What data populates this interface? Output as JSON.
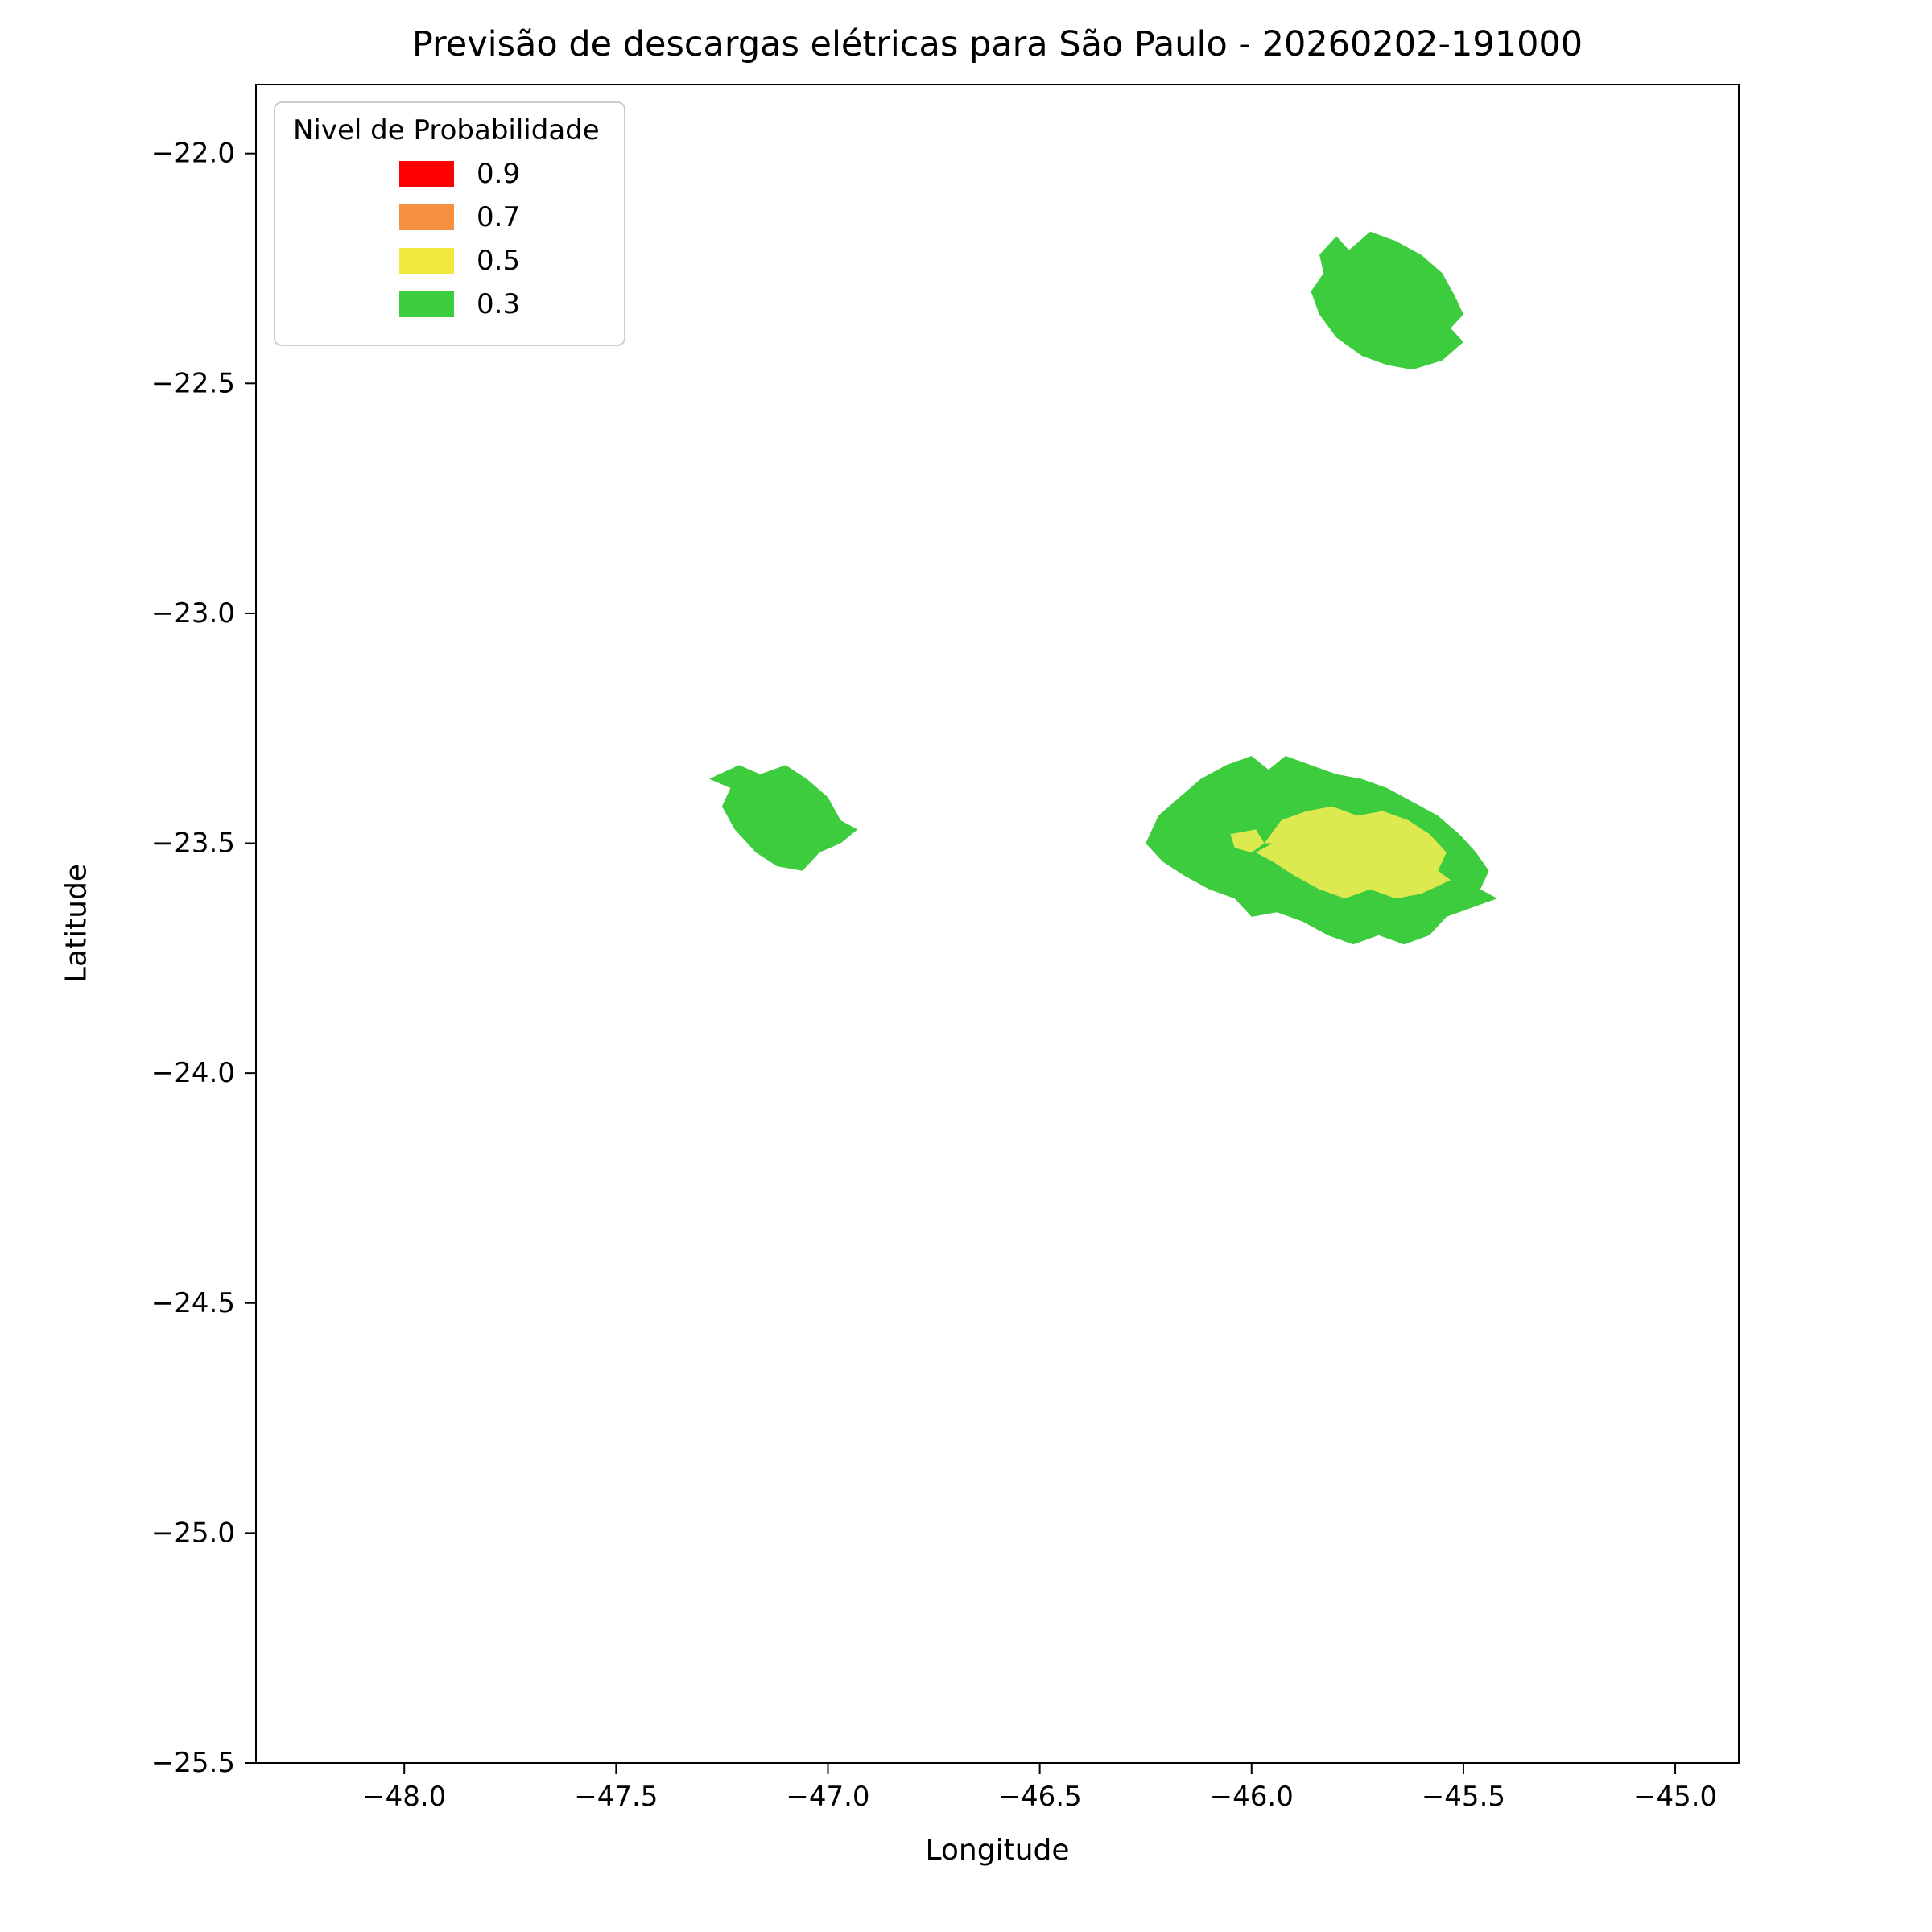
{
  "chart_data": {
    "type": "area",
    "title": "Previsão de descargas elétricas para São Paulo - 20260202-191000",
    "xlabel": "Longitude",
    "ylabel": "Latitude",
    "xlim": [
      -48.35,
      -44.85
    ],
    "ylim": [
      -25.5,
      -21.85
    ],
    "grid": false,
    "xticks": [
      -48.0,
      -47.5,
      -47.0,
      -46.5,
      -46.0,
      -45.5,
      -45.0
    ],
    "xtick_labels": [
      "−48.0",
      "−47.5",
      "−47.0",
      "−46.5",
      "−46.0",
      "−45.5",
      "−45.0"
    ],
    "yticks": [
      -22.0,
      -22.5,
      -23.0,
      -23.5,
      -24.0,
      -24.5,
      -25.0,
      -25.5
    ],
    "ytick_labels": [
      "−22.0",
      "−22.5",
      "−23.0",
      "−23.5",
      "−24.0",
      "−24.5",
      "−25.0",
      "−25.5"
    ],
    "legend": {
      "title": "Nivel de Probabilidade",
      "position": "upper left",
      "items": [
        {
          "label": "0.9",
          "level": 0.9,
          "color": "#ff0000"
        },
        {
          "label": "0.7",
          "level": 0.7,
          "color": "#f59140"
        },
        {
          "label": "0.5",
          "level": 0.5,
          "color": "#f0e93d"
        },
        {
          "label": "0.3",
          "level": 0.3,
          "color": "#3dcc3d"
        }
      ]
    },
    "regions": [
      {
        "name": "north-cell",
        "level": 0.3,
        "color": "#3dcc3d",
        "polygon": [
          [
            -45.84,
            -22.22
          ],
          [
            -45.8,
            -22.18
          ],
          [
            -45.77,
            -22.21
          ],
          [
            -45.72,
            -22.17
          ],
          [
            -45.66,
            -22.19
          ],
          [
            -45.6,
            -22.22
          ],
          [
            -45.55,
            -22.26
          ],
          [
            -45.52,
            -22.31
          ],
          [
            -45.5,
            -22.35
          ],
          [
            -45.53,
            -22.38
          ],
          [
            -45.5,
            -22.41
          ],
          [
            -45.55,
            -22.45
          ],
          [
            -45.62,
            -22.47
          ],
          [
            -45.68,
            -22.46
          ],
          [
            -45.74,
            -22.44
          ],
          [
            -45.8,
            -22.4
          ],
          [
            -45.84,
            -22.35
          ],
          [
            -45.86,
            -22.3
          ],
          [
            -45.83,
            -22.26
          ]
        ]
      },
      {
        "name": "west-cell",
        "level": 0.3,
        "color": "#3dcc3d",
        "polygon": [
          [
            -47.28,
            -23.36
          ],
          [
            -47.21,
            -23.33
          ],
          [
            -47.16,
            -23.35
          ],
          [
            -47.1,
            -23.33
          ],
          [
            -47.05,
            -23.36
          ],
          [
            -47.0,
            -23.4
          ],
          [
            -46.97,
            -23.45
          ],
          [
            -46.93,
            -23.47
          ],
          [
            -46.97,
            -23.5
          ],
          [
            -47.02,
            -23.52
          ],
          [
            -47.06,
            -23.56
          ],
          [
            -47.12,
            -23.55
          ],
          [
            -47.17,
            -23.52
          ],
          [
            -47.22,
            -23.47
          ],
          [
            -47.25,
            -23.42
          ],
          [
            -47.23,
            -23.38
          ]
        ]
      },
      {
        "name": "east-cell-outer",
        "level": 0.3,
        "color": "#3dcc3d",
        "polygon": [
          [
            -46.25,
            -23.5
          ],
          [
            -46.22,
            -23.44
          ],
          [
            -46.17,
            -23.4
          ],
          [
            -46.12,
            -23.36
          ],
          [
            -46.06,
            -23.33
          ],
          [
            -46.0,
            -23.31
          ],
          [
            -45.96,
            -23.34
          ],
          [
            -45.92,
            -23.31
          ],
          [
            -45.86,
            -23.33
          ],
          [
            -45.8,
            -23.35
          ],
          [
            -45.74,
            -23.36
          ],
          [
            -45.68,
            -23.38
          ],
          [
            -45.62,
            -23.41
          ],
          [
            -45.56,
            -23.44
          ],
          [
            -45.51,
            -23.48
          ],
          [
            -45.47,
            -23.52
          ],
          [
            -45.44,
            -23.56
          ],
          [
            -45.46,
            -23.6
          ],
          [
            -45.42,
            -23.62
          ],
          [
            -45.48,
            -23.64
          ],
          [
            -45.54,
            -23.66
          ],
          [
            -45.58,
            -23.7
          ],
          [
            -45.64,
            -23.72
          ],
          [
            -45.7,
            -23.7
          ],
          [
            -45.76,
            -23.72
          ],
          [
            -45.82,
            -23.7
          ],
          [
            -45.88,
            -23.67
          ],
          [
            -45.94,
            -23.65
          ],
          [
            -46.0,
            -23.66
          ],
          [
            -46.04,
            -23.62
          ],
          [
            -46.1,
            -23.6
          ],
          [
            -46.16,
            -23.57
          ],
          [
            -46.21,
            -23.54
          ]
        ]
      },
      {
        "name": "east-cell-inner",
        "level": 0.5,
        "color": "#dce94f",
        "polygon": [
          [
            -45.97,
            -23.5
          ],
          [
            -45.93,
            -23.45
          ],
          [
            -45.87,
            -23.43
          ],
          [
            -45.81,
            -23.42
          ],
          [
            -45.75,
            -23.44
          ],
          [
            -45.69,
            -23.43
          ],
          [
            -45.63,
            -23.45
          ],
          [
            -45.58,
            -23.48
          ],
          [
            -45.54,
            -23.52
          ],
          [
            -45.56,
            -23.56
          ],
          [
            -45.53,
            -23.58
          ],
          [
            -45.6,
            -23.61
          ],
          [
            -45.66,
            -23.62
          ],
          [
            -45.72,
            -23.6
          ],
          [
            -45.78,
            -23.62
          ],
          [
            -45.84,
            -23.6
          ],
          [
            -45.9,
            -23.57
          ],
          [
            -45.95,
            -23.54
          ],
          [
            -45.99,
            -23.52
          ],
          [
            -45.95,
            -23.5
          ]
        ]
      },
      {
        "name": "east-cell-inner-west-speck",
        "level": 0.5,
        "color": "#dce94f",
        "polygon": [
          [
            -46.05,
            -23.48
          ],
          [
            -45.99,
            -23.47
          ],
          [
            -45.97,
            -23.5
          ],
          [
            -46.0,
            -23.52
          ],
          [
            -46.04,
            -23.51
          ]
        ]
      }
    ]
  }
}
